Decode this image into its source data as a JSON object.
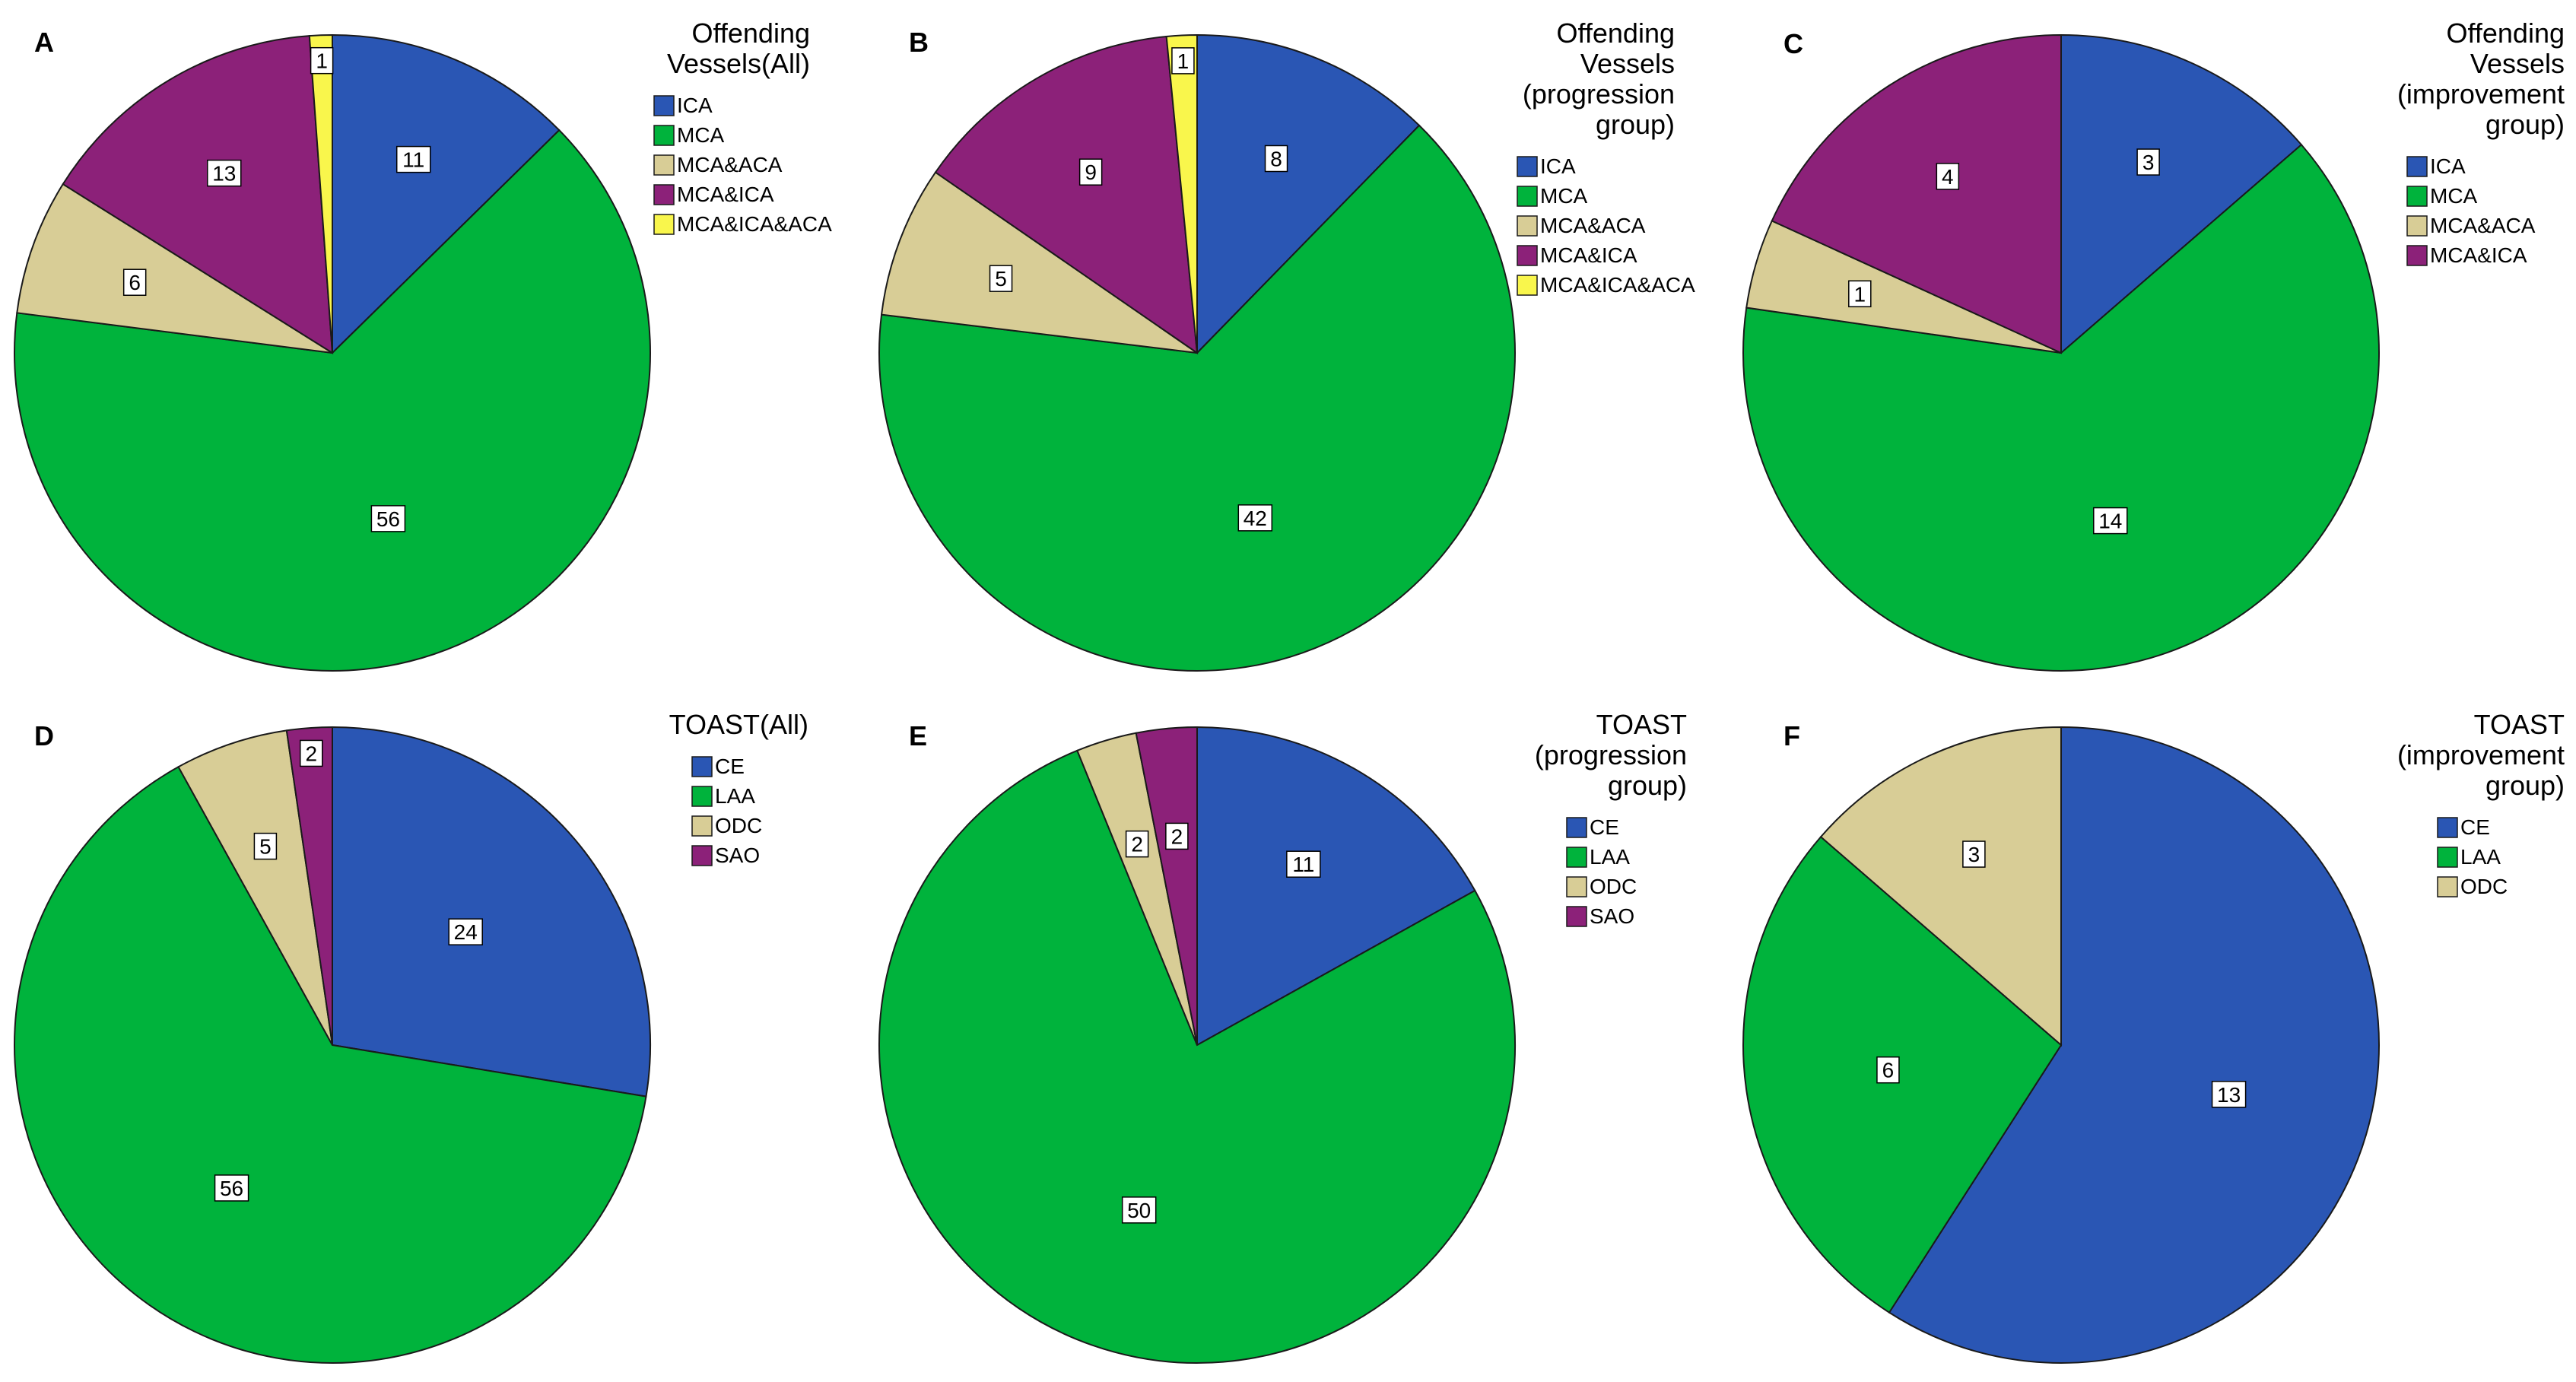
{
  "colors": {
    "ICA": "#2A56B4",
    "MCA": "#00B33C",
    "MCA&ACA": "#D8CD96",
    "MCA&ICA": "#8C2179",
    "MCA&ICA&ACA": "#F9F64C",
    "CE": "#2A56B4",
    "LAA": "#00B33C",
    "ODC": "#D8CD96",
    "SAO": "#8C2179"
  },
  "chart_data": [
    {
      "type": "pie",
      "panel": "A",
      "title": [
        "Offending",
        "Vessels(All)"
      ],
      "categories": [
        "ICA",
        "MCA",
        "MCA&ACA",
        "MCA&ICA",
        "MCA&ICA&ACA"
      ],
      "values": [
        11,
        56,
        6,
        13,
        1
      ],
      "legend_position": "right"
    },
    {
      "type": "pie",
      "panel": "B",
      "title": [
        "Offending",
        "Vessels",
        "(progression",
        "group)"
      ],
      "categories": [
        "ICA",
        "MCA",
        "MCA&ACA",
        "MCA&ICA",
        "MCA&ICA&ACA"
      ],
      "values": [
        8,
        42,
        5,
        9,
        1
      ],
      "legend_position": "right"
    },
    {
      "type": "pie",
      "panel": "C",
      "title": [
        "Offending",
        "Vessels",
        "(improvement",
        "group)"
      ],
      "categories": [
        "ICA",
        "MCA",
        "MCA&ACA",
        "MCA&ICA"
      ],
      "values": [
        3,
        14,
        1,
        4
      ],
      "legend_position": "right"
    },
    {
      "type": "pie",
      "panel": "D",
      "title": [
        "TOAST(All)"
      ],
      "categories": [
        "CE",
        "LAA",
        "ODC",
        "SAO"
      ],
      "values": [
        24,
        56,
        5,
        2
      ],
      "legend_position": "right"
    },
    {
      "type": "pie",
      "panel": "E",
      "title": [
        "TOAST",
        "(progression",
        "group)"
      ],
      "categories": [
        "CE",
        "LAA",
        "ODC",
        "SAO"
      ],
      "values": [
        11,
        50,
        2,
        2
      ],
      "legend_position": "right"
    },
    {
      "type": "pie",
      "panel": "F",
      "title": [
        "TOAST",
        "(improvement",
        "group)"
      ],
      "categories": [
        "CE",
        "LAA",
        "ODC"
      ],
      "values": [
        13,
        6,
        3
      ],
      "legend_position": "right"
    }
  ]
}
